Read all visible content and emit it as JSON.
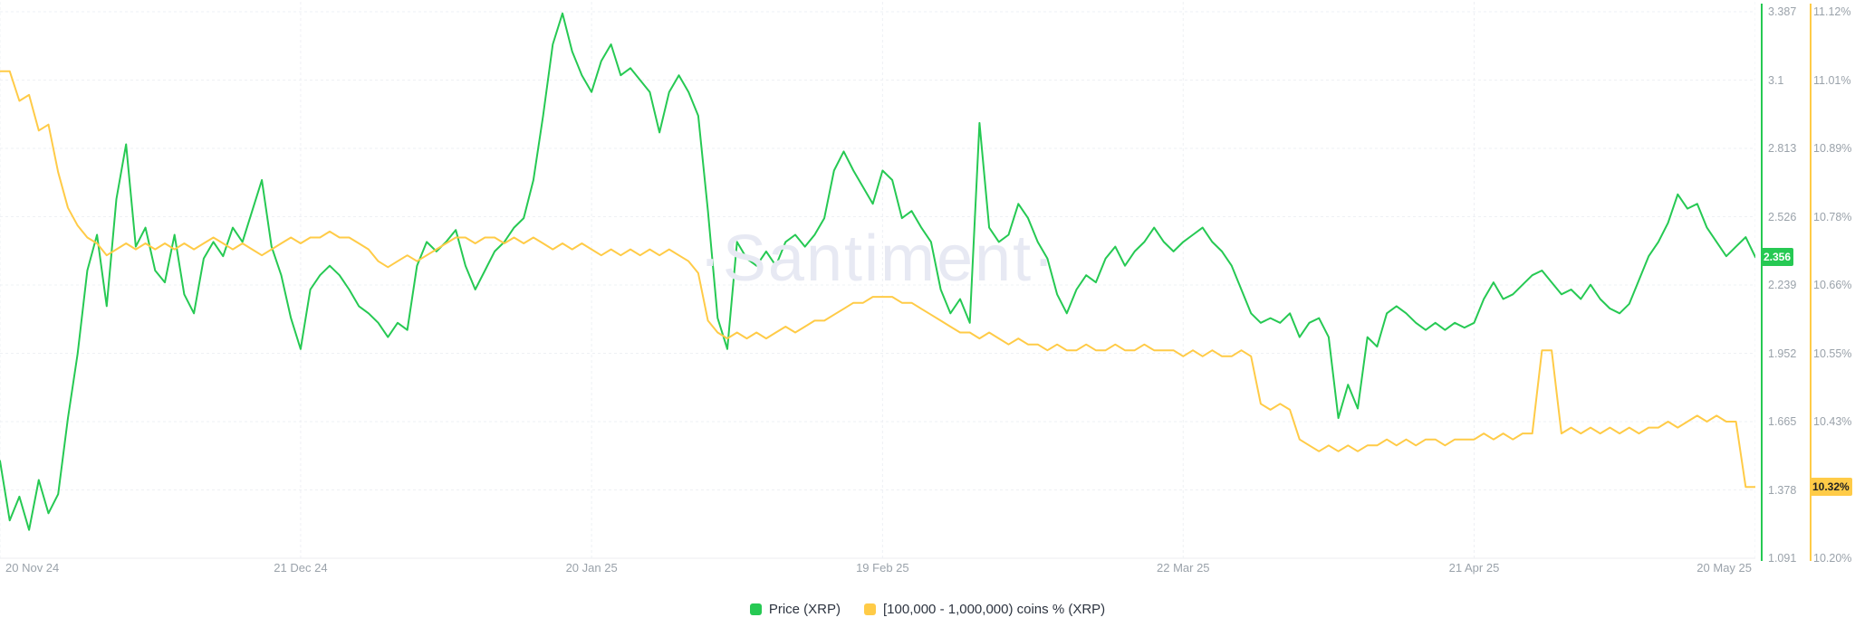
{
  "watermark": "·Santiment·",
  "legend": {
    "items": [
      {
        "label": "Price (XRP)",
        "color": "#26C953"
      },
      {
        "label": "[100,000 - 1,000,000) coins % (XRP)",
        "color": "#FFCB47"
      }
    ]
  },
  "chart_data": {
    "type": "line",
    "title": "",
    "grid": true,
    "legend_position": "bottom-center",
    "x_axis": {
      "start": "20 Nov 24",
      "end": "20 May 25",
      "days_total": 181,
      "tick_labels": [
        "20 Nov 24",
        "21 Dec 24",
        "20 Jan 25",
        "19 Feb 25",
        "22 Mar 25",
        "21 Apr 25",
        "20 May 25"
      ],
      "tick_days": [
        0,
        31,
        61,
        91,
        122,
        152,
        181
      ]
    },
    "y_axes": {
      "price": {
        "title": "Price (XRP)",
        "color": "#26C953",
        "min": 1.091,
        "max": 3.387,
        "ticks": [
          1.091,
          1.378,
          1.665,
          1.952,
          2.239,
          2.526,
          2.813,
          3.1,
          3.387
        ],
        "tick_labels": [
          "1.091",
          "1.378",
          "1.665",
          "1.952",
          "2.239",
          "2.526",
          "2.813",
          "3.1",
          "3.387"
        ],
        "current_value": 2.356,
        "current_label": "2.356"
      },
      "percent": {
        "title": "[100,000 - 1,000,000) coins % (XRP)",
        "color": "#FFCB47",
        "min": 10.2,
        "max": 11.12,
        "ticks": [
          10.2,
          10.32,
          10.43,
          10.55,
          10.66,
          10.78,
          10.89,
          11.01,
          11.12
        ],
        "tick_labels": [
          "10.20%",
          "10.32%",
          "10.43%",
          "10.55%",
          "10.66%",
          "10.78%",
          "10.89%",
          "11.01%",
          "11.12%"
        ],
        "current_value": 10.32,
        "current_label": "10.32%"
      }
    },
    "series": [
      {
        "name": "Price (XRP)",
        "axis": "price",
        "color": "#26C953",
        "values": [
          1.5,
          1.25,
          1.35,
          1.21,
          1.42,
          1.28,
          1.36,
          1.68,
          1.95,
          2.3,
          2.45,
          2.15,
          2.6,
          2.83,
          2.4,
          2.48,
          2.3,
          2.25,
          2.45,
          2.2,
          2.12,
          2.35,
          2.42,
          2.36,
          2.48,
          2.42,
          2.55,
          2.68,
          2.4,
          2.28,
          2.1,
          1.97,
          2.22,
          2.28,
          2.32,
          2.28,
          2.22,
          2.15,
          2.12,
          2.08,
          2.02,
          2.08,
          2.05,
          2.32,
          2.42,
          2.38,
          2.42,
          2.47,
          2.32,
          2.22,
          2.3,
          2.38,
          2.42,
          2.48,
          2.52,
          2.68,
          2.95,
          3.25,
          3.38,
          3.22,
          3.12,
          3.05,
          3.18,
          3.25,
          3.12,
          3.15,
          3.1,
          3.05,
          2.88,
          3.05,
          3.12,
          3.05,
          2.95,
          2.55,
          2.1,
          1.97,
          2.42,
          2.35,
          2.32,
          2.38,
          2.32,
          2.42,
          2.45,
          2.4,
          2.45,
          2.52,
          2.72,
          2.8,
          2.72,
          2.65,
          2.58,
          2.72,
          2.68,
          2.52,
          2.55,
          2.48,
          2.42,
          2.22,
          2.12,
          2.18,
          2.08,
          2.92,
          2.48,
          2.42,
          2.45,
          2.58,
          2.52,
          2.42,
          2.35,
          2.2,
          2.12,
          2.22,
          2.28,
          2.25,
          2.35,
          2.4,
          2.32,
          2.38,
          2.42,
          2.48,
          2.42,
          2.38,
          2.42,
          2.45,
          2.48,
          2.42,
          2.38,
          2.32,
          2.22,
          2.12,
          2.08,
          2.1,
          2.08,
          2.12,
          2.02,
          2.08,
          2.1,
          2.02,
          1.68,
          1.82,
          1.72,
          2.02,
          1.98,
          2.12,
          2.15,
          2.12,
          2.08,
          2.05,
          2.08,
          2.05,
          2.08,
          2.06,
          2.08,
          2.18,
          2.25,
          2.18,
          2.2,
          2.24,
          2.28,
          2.3,
          2.25,
          2.2,
          2.22,
          2.18,
          2.24,
          2.18,
          2.14,
          2.12,
          2.16,
          2.26,
          2.36,
          2.42,
          2.5,
          2.62,
          2.56,
          2.58,
          2.48,
          2.42,
          2.36,
          2.4,
          2.44,
          2.356
        ]
      },
      {
        "name": "[100,000 - 1,000,000) coins % (XRP)",
        "axis": "percent",
        "color": "#FFCB47",
        "values": [
          11.02,
          11.02,
          10.97,
          10.98,
          10.92,
          10.93,
          10.85,
          10.79,
          10.76,
          10.74,
          10.73,
          10.71,
          10.72,
          10.73,
          10.72,
          10.73,
          10.72,
          10.73,
          10.72,
          10.73,
          10.72,
          10.73,
          10.74,
          10.73,
          10.72,
          10.73,
          10.72,
          10.71,
          10.72,
          10.73,
          10.74,
          10.73,
          10.74,
          10.74,
          10.75,
          10.74,
          10.74,
          10.73,
          10.72,
          10.7,
          10.69,
          10.7,
          10.71,
          10.7,
          10.71,
          10.72,
          10.73,
          10.74,
          10.74,
          10.73,
          10.74,
          10.74,
          10.73,
          10.74,
          10.73,
          10.74,
          10.73,
          10.72,
          10.73,
          10.72,
          10.73,
          10.72,
          10.71,
          10.72,
          10.71,
          10.72,
          10.71,
          10.72,
          10.71,
          10.72,
          10.71,
          10.7,
          10.68,
          10.6,
          10.58,
          10.57,
          10.58,
          10.57,
          10.58,
          10.57,
          10.58,
          10.59,
          10.58,
          10.59,
          10.6,
          10.6,
          10.61,
          10.62,
          10.63,
          10.63,
          10.64,
          10.64,
          10.64,
          10.63,
          10.63,
          10.62,
          10.61,
          10.6,
          10.59,
          10.58,
          10.58,
          10.57,
          10.58,
          10.57,
          10.56,
          10.57,
          10.56,
          10.56,
          10.55,
          10.56,
          10.55,
          10.55,
          10.56,
          10.55,
          10.55,
          10.56,
          10.55,
          10.55,
          10.56,
          10.55,
          10.55,
          10.55,
          10.54,
          10.55,
          10.54,
          10.55,
          10.54,
          10.54,
          10.55,
          10.54,
          10.46,
          10.45,
          10.46,
          10.45,
          10.4,
          10.39,
          10.38,
          10.39,
          10.38,
          10.39,
          10.38,
          10.39,
          10.39,
          10.4,
          10.39,
          10.4,
          10.39,
          10.4,
          10.4,
          10.39,
          10.4,
          10.4,
          10.4,
          10.41,
          10.4,
          10.41,
          10.4,
          10.41,
          10.41,
          10.55,
          10.55,
          10.41,
          10.42,
          10.41,
          10.42,
          10.41,
          10.42,
          10.41,
          10.42,
          10.41,
          10.42,
          10.42,
          10.43,
          10.42,
          10.43,
          10.44,
          10.43,
          10.44,
          10.43,
          10.43,
          10.32,
          10.32
        ]
      }
    ]
  }
}
